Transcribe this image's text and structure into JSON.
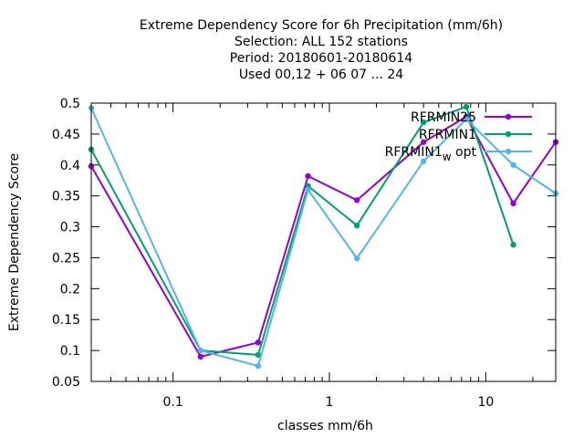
{
  "chart_data": {
    "type": "line",
    "title": [
      "Extreme Dependency Score  for 6h Precipitation (mm/6h)",
      "Selection: ALL    152 stations",
      "Period: 20180601-20180614",
      "Used  00,12  + 06 07 ... 24"
    ],
    "xlabel": "classes mm/6h",
    "ylabel": "Extreme Dependency Score",
    "x_scale": "log",
    "xlim": [
      0.03,
      28
    ],
    "ylim": [
      0.05,
      0.5
    ],
    "x_ticks": [
      {
        "value": 0.1,
        "label": "0.1"
      },
      {
        "value": 1,
        "label": "1"
      },
      {
        "value": 10,
        "label": "10"
      }
    ],
    "x_minor_ticks": [
      0.03,
      0.04,
      0.05,
      0.06,
      0.07,
      0.08,
      0.09,
      0.2,
      0.3,
      0.4,
      0.5,
      0.6,
      0.7,
      0.8,
      0.9,
      2,
      3,
      4,
      5,
      6,
      7,
      8,
      9,
      20
    ],
    "y_ticks": [
      {
        "value": 0.05,
        "label": "0.05"
      },
      {
        "value": 0.1,
        "label": "0.1"
      },
      {
        "value": 0.15,
        "label": "0.15"
      },
      {
        "value": 0.2,
        "label": "0.2"
      },
      {
        "value": 0.25,
        "label": "0.25"
      },
      {
        "value": 0.3,
        "label": "0.3"
      },
      {
        "value": 0.35,
        "label": "0.35"
      },
      {
        "value": 0.4,
        "label": "0.4"
      },
      {
        "value": 0.45,
        "label": "0.45"
      },
      {
        "value": 0.5,
        "label": "0.5"
      }
    ],
    "legend_position": "top-right",
    "series": [
      {
        "name": "RFRMIN25",
        "color": "#9400d3",
        "points": [
          [
            0.03,
            0.398
          ],
          [
            0.15,
            0.09
          ],
          [
            0.35,
            0.113
          ],
          [
            0.73,
            0.382
          ],
          [
            1.5,
            0.343
          ],
          [
            4,
            0.437
          ],
          [
            7.5,
            0.478
          ],
          [
            15,
            0.338
          ],
          [
            28,
            0.437
          ]
        ]
      },
      {
        "name": "RFRMIN1",
        "color": "#009e73",
        "points": [
          [
            0.03,
            0.425
          ],
          [
            0.15,
            0.1
          ],
          [
            0.35,
            0.093
          ],
          [
            0.73,
            0.366
          ],
          [
            1.5,
            0.302
          ],
          [
            4,
            0.469
          ],
          [
            7.5,
            0.494
          ],
          [
            15,
            0.271
          ]
        ]
      },
      {
        "name": "RFRMIN1",
        "name_subscript": "w",
        "name_suffix": "opt",
        "color": "#56b4e9",
        "points": [
          [
            0.03,
            0.492
          ],
          [
            0.15,
            0.1
          ],
          [
            0.35,
            0.075
          ],
          [
            0.73,
            0.36
          ],
          [
            1.5,
            0.249
          ],
          [
            4,
            0.406
          ],
          [
            7.5,
            0.474
          ],
          [
            15,
            0.4
          ],
          [
            28,
            0.354
          ]
        ]
      }
    ]
  }
}
